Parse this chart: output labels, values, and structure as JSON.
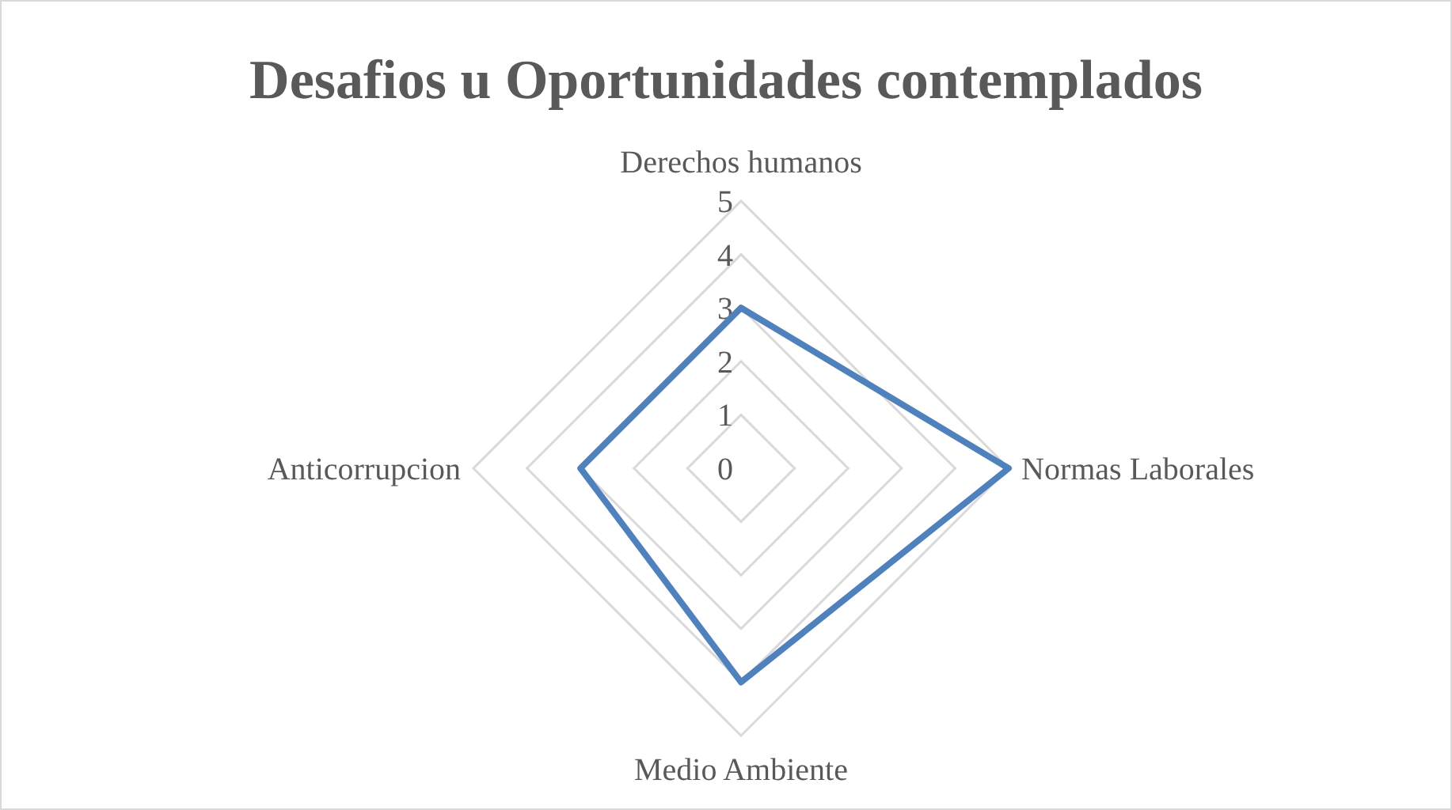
{
  "chart_data": {
    "type": "radar",
    "title": "Desafios u Oportunidades contemplados",
    "categories": [
      "Derechos humanos",
      "Normas Laborales",
      "Medio Ambiente",
      "Anticorrupcion"
    ],
    "series": [
      {
        "color": "#4f81bd",
        "values": [
          3,
          5,
          4,
          3
        ]
      }
    ],
    "ylim": [
      0,
      5
    ],
    "yticks": [
      0,
      1,
      2,
      3,
      4,
      5
    ],
    "grid": true,
    "marker": "none"
  }
}
